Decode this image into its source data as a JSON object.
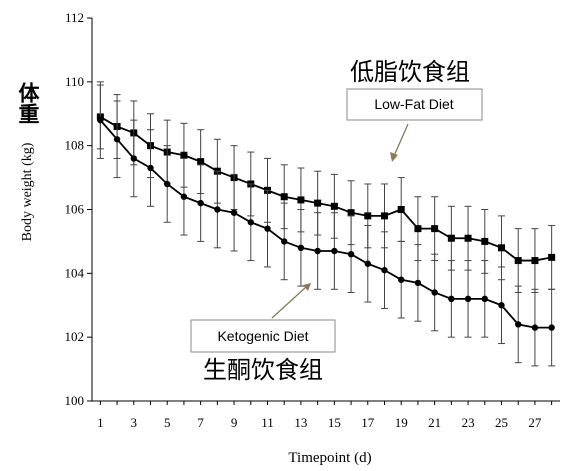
{
  "chart_data": {
    "type": "line",
    "xlabel": "Timepoint (d)",
    "ylabel": "Body weight (kg)",
    "ylabel_cn": "体重",
    "xlim": [
      0.5,
      28.5
    ],
    "ylim": [
      100,
      112
    ],
    "x_ticks": [
      1,
      3,
      5,
      7,
      9,
      11,
      13,
      15,
      17,
      19,
      21,
      23,
      25,
      27
    ],
    "y_ticks": [
      100,
      102,
      104,
      106,
      108,
      110,
      112
    ],
    "grid": false,
    "x": [
      1,
      2,
      3,
      4,
      5,
      6,
      7,
      8,
      9,
      10,
      11,
      12,
      13,
      14,
      15,
      16,
      17,
      18,
      19,
      20,
      21,
      22,
      23,
      24,
      25,
      26,
      27,
      28
    ],
    "series": [
      {
        "name": "Low-Fat Diet",
        "name_cn": "低脂饮食组",
        "marker": "square",
        "color": "#000000",
        "values": [
          108.9,
          108.6,
          108.4,
          108.0,
          107.8,
          107.7,
          107.5,
          107.2,
          107.0,
          106.8,
          106.6,
          106.4,
          106.3,
          106.2,
          106.1,
          105.9,
          105.8,
          105.8,
          106.0,
          105.4,
          105.4,
          105.1,
          105.1,
          105.0,
          104.8,
          104.4,
          104.4,
          104.5
        ],
        "error": [
          1.0,
          1.0,
          1.0,
          1.0,
          1.0,
          1.0,
          1.0,
          1.0,
          1.0,
          1.0,
          1.0,
          1.0,
          1.0,
          1.0,
          1.0,
          1.0,
          1.0,
          1.0,
          1.0,
          1.0,
          1.0,
          1.0,
          1.0,
          1.0,
          1.0,
          1.0,
          1.0,
          1.0
        ]
      },
      {
        "name": "Ketogenic Diet",
        "name_cn": "生酮饮食组",
        "marker": "circle",
        "color": "#000000",
        "values": [
          108.8,
          108.2,
          107.6,
          107.3,
          106.8,
          106.4,
          106.2,
          106.0,
          105.9,
          105.6,
          105.4,
          105.0,
          104.8,
          104.7,
          104.7,
          104.6,
          104.3,
          104.1,
          103.8,
          103.7,
          103.4,
          103.2,
          103.2,
          103.2,
          103.0,
          102.4,
          102.3,
          102.3
        ],
        "error": [
          1.2,
          1.2,
          1.2,
          1.2,
          1.2,
          1.2,
          1.2,
          1.2,
          1.2,
          1.2,
          1.2,
          1.2,
          1.2,
          1.2,
          1.2,
          1.2,
          1.2,
          1.2,
          1.2,
          1.2,
          1.2,
          1.2,
          1.2,
          1.2,
          1.2,
          1.2,
          1.2,
          1.2
        ]
      }
    ]
  }
}
